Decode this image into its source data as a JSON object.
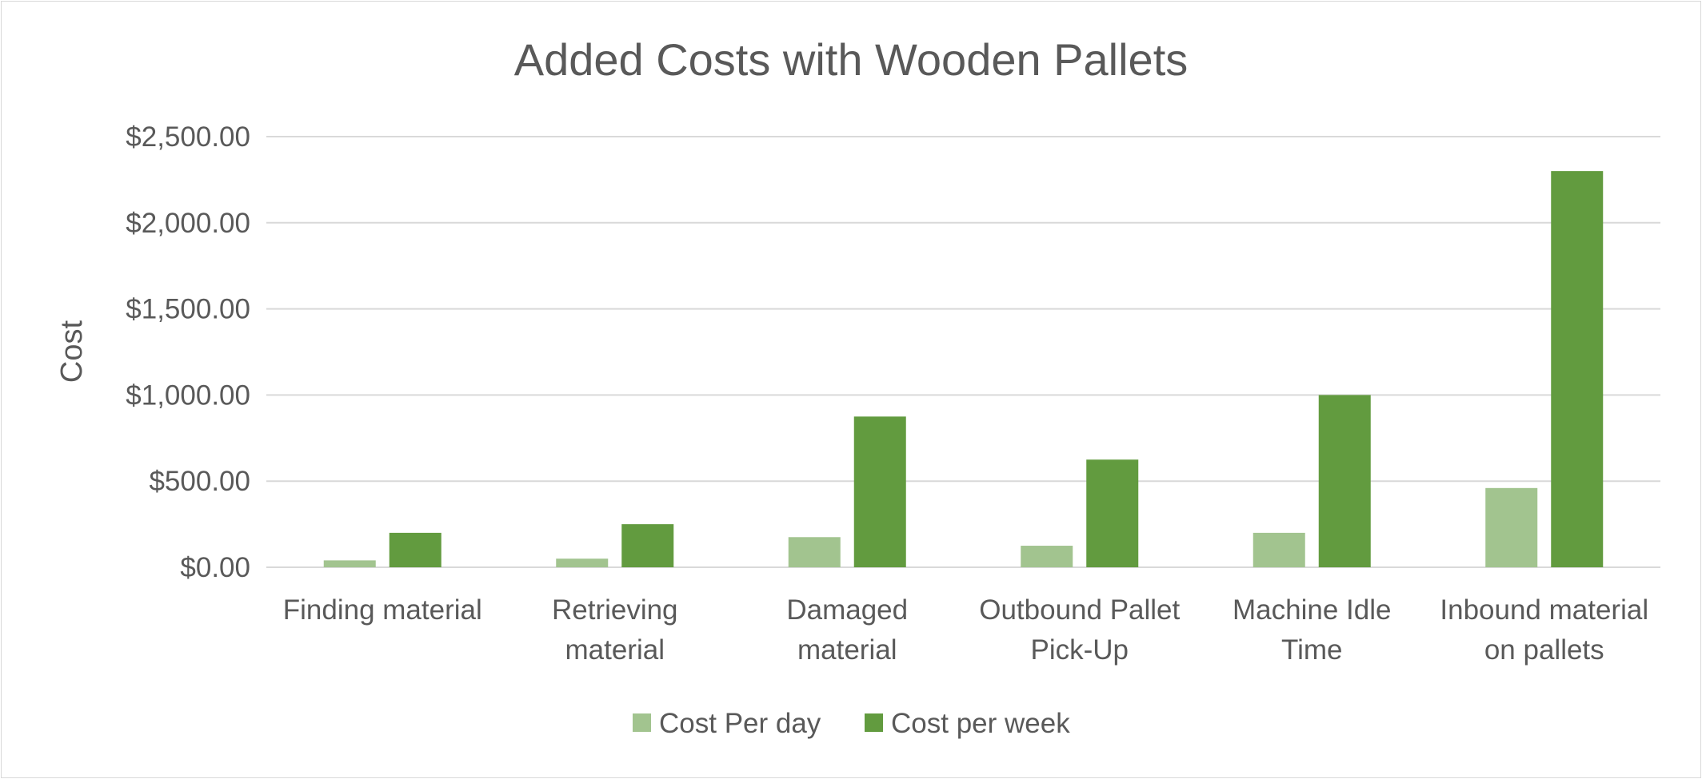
{
  "chart_data": {
    "type": "bar",
    "title": "Added Costs with Wooden Pallets",
    "xlabel": "",
    "ylabel": "Cost",
    "categories": [
      [
        "Finding material"
      ],
      [
        "Retrieving",
        "material"
      ],
      [
        "Damaged",
        "material"
      ],
      [
        "Outbound Pallet",
        "Pick-Up"
      ],
      [
        "Machine Idle",
        "Time"
      ],
      [
        "Inbound material",
        "on pallets"
      ]
    ],
    "series": [
      {
        "name": "Cost Per day",
        "color": "#a2c48f",
        "values": [
          40,
          50,
          175,
          125,
          200,
          460
        ]
      },
      {
        "name": "Cost per week",
        "color": "#629b3f",
        "values": [
          200,
          250,
          875,
          625,
          1000,
          2300
        ]
      }
    ],
    "ylim": [
      0,
      2500
    ],
    "yticks": [
      0,
      500,
      1000,
      1500,
      2000,
      2500
    ],
    "ytick_labels": [
      "$0.00",
      "$500.00",
      "$1,000.00",
      "$1,500.00",
      "$2,000.00",
      "$2,500.00"
    ],
    "grid": true,
    "legend_position": "bottom"
  }
}
